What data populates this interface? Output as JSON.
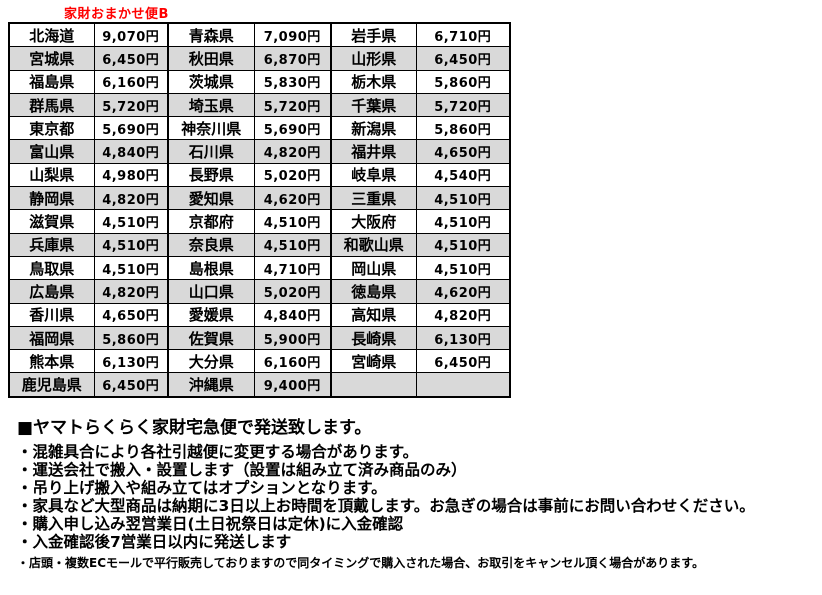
{
  "title": "家財おまかせ便B",
  "colors": {
    "accent_red": "#ff0000",
    "row_alt_gray": "#d9d9d9",
    "border": "#000000"
  },
  "shipping_table": {
    "rows": [
      [
        "北海道",
        "9,070円",
        "青森県",
        "7,090円",
        "岩手県",
        "6,710円"
      ],
      [
        "宮城県",
        "6,450円",
        "秋田県",
        "6,870円",
        "山形県",
        "6,450円"
      ],
      [
        "福島県",
        "6,160円",
        "茨城県",
        "5,830円",
        "栃木県",
        "5,860円"
      ],
      [
        "群馬県",
        "5,720円",
        "埼玉県",
        "5,720円",
        "千葉県",
        "5,720円"
      ],
      [
        "東京都",
        "5,690円",
        "神奈川県",
        "5,690円",
        "新潟県",
        "5,860円"
      ],
      [
        "富山県",
        "4,840円",
        "石川県",
        "4,820円",
        "福井県",
        "4,650円"
      ],
      [
        "山梨県",
        "4,980円",
        "長野県",
        "5,020円",
        "岐阜県",
        "4,540円"
      ],
      [
        "静岡県",
        "4,820円",
        "愛知県",
        "4,620円",
        "三重県",
        "4,510円"
      ],
      [
        "滋賀県",
        "4,510円",
        "京都府",
        "4,510円",
        "大阪府",
        "4,510円"
      ],
      [
        "兵庫県",
        "4,510円",
        "奈良県",
        "4,510円",
        "和歌山県",
        "4,510円"
      ],
      [
        "鳥取県",
        "4,510円",
        "島根県",
        "4,710円",
        "岡山県",
        "4,510円"
      ],
      [
        "広島県",
        "4,820円",
        "山口県",
        "5,020円",
        "徳島県",
        "4,620円"
      ],
      [
        "香川県",
        "4,650円",
        "愛媛県",
        "4,840円",
        "高知県",
        "4,820円"
      ],
      [
        "福岡県",
        "5,860円",
        "佐賀県",
        "5,900円",
        "長崎県",
        "6,130円"
      ],
      [
        "熊本県",
        "6,130円",
        "大分県",
        "6,160円",
        "宮崎県",
        "6,450円"
      ],
      [
        "鹿児島県",
        "6,450円",
        "沖縄県",
        "9,400円",
        "",
        ""
      ]
    ]
  },
  "notes": {
    "heading": "■ヤマトらくらく家財宅急便で発送致します。",
    "bullets": [
      "・混雑具合により各社引越便に変更する場合があります。",
      "・運送会社で搬入・設置します（設置は組み立て済み商品のみ）",
      "・吊り上げ搬入や組み立てはオプションとなります。",
      "・家具など大型商品は納期に3日以上お時間を頂戴します。お急ぎの場合は事前にお問い合わせください。",
      "・購入申し込み翌営業日(土日祝祭日は定休)に入金確認",
      "・入金確認後7営業日以内に発送します"
    ],
    "footnote": "・店頭・複数ECモールで平行販売しておりますので同タイミングで購入された場合、お取引をキャンセル頂く場合があります。"
  }
}
